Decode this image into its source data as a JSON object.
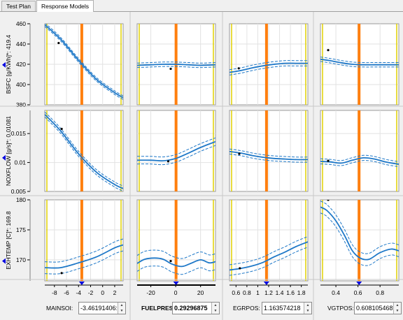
{
  "tabs": [
    {
      "label": "Test Plan",
      "active": false
    },
    {
      "label": "Response Models",
      "active": true
    }
  ],
  "colors": {
    "curve": "#1e78c8",
    "cursor": "#ff7f0e",
    "axis_marker": "#0000e0",
    "point": "#000000"
  },
  "icons": {
    "row_marker": "left-triangle-icon",
    "col_marker": "down-triangle-icon",
    "spinner": "up-down-arrows-icon"
  },
  "responses": [
    {
      "name": "BSFC",
      "label": "BSFC [g/KWh]*: 419.4",
      "ylim": [
        380,
        460
      ],
      "yticks": [
        "380",
        "400",
        "420",
        "440",
        "460"
      ],
      "marker_value": 419.4
    },
    {
      "name": "NOXFLOW",
      "label": "NOXFLOW [g/s]*: 0.01081",
      "ylim": [
        0.005,
        0.019
      ],
      "yticks": [
        "0.005",
        "0.01",
        "0.015"
      ],
      "marker_value": 0.01081
    },
    {
      "name": "EXHTEMP",
      "label": "EXHTEMP [C]*: 169.8",
      "ylim": [
        166.5,
        180
      ],
      "yticks": [
        "170",
        "175",
        "180"
      ],
      "marker_value": 169.8
    }
  ],
  "factors": [
    {
      "name": "MAINSOI",
      "label": "MAINSOI:",
      "value": "-3.46191406:",
      "bold": false,
      "xlim": [
        -9.6,
        3.4
      ],
      "xticks": [
        "-8",
        "-6",
        "-4",
        "-2",
        "0",
        "2"
      ],
      "cursor": -3.46
    },
    {
      "name": "FUELPRESS",
      "label": "FUELPRES...",
      "value": "0.29296875",
      "bold": true,
      "xlim": [
        -31,
        32
      ],
      "xticks": [
        "-20",
        "0",
        "20"
      ],
      "cursor": 0.29
    },
    {
      "name": "EGRPOS",
      "label": "EGRPOS:",
      "value": "1.163574218",
      "bold": false,
      "xlim": [
        0.48,
        1.92
      ],
      "xticks": [
        "0.6",
        "0.8",
        "1",
        "1.2",
        "1.4",
        "1.6",
        "1.8"
      ],
      "cursor": 1.16
    },
    {
      "name": "VGTPOS",
      "label": "VGTPOS:",
      "value": "0.608105468",
      "bold": false,
      "xlim": [
        0.26,
        0.97
      ],
      "xticks": [
        "0.4",
        "0.6",
        "0.8"
      ],
      "cursor": 0.61
    }
  ],
  "chart_data": {
    "type": "line",
    "cells": [
      [
        {
          "x": [
            -9.6,
            -7,
            -4,
            -1,
            2,
            3.4
          ],
          "y": [
            459,
            445,
            424,
            405,
            392,
            387
          ],
          "points": [
            [
              -7.3,
              441
            ]
          ],
          "band": 0.8
        },
        {
          "x": [
            -31,
            -20,
            -10,
            0,
            10,
            20,
            32
          ],
          "y": [
            419,
            419.5,
            420,
            420,
            419.5,
            419,
            419.5
          ],
          "points": [
            [
              -4,
              415.5
            ]
          ],
          "band": 1.0
        },
        {
          "x": [
            0.48,
            0.7,
            0.9,
            1.1,
            1.3,
            1.5,
            1.7,
            1.92
          ],
          "y": [
            412,
            414,
            416.5,
            418.5,
            420,
            421,
            421,
            421
          ],
          "points": [
            [
              0.65,
              416
            ]
          ],
          "band": 1.2
        },
        {
          "x": [
            0.26,
            0.35,
            0.45,
            0.55,
            0.65,
            0.75,
            0.85,
            0.97
          ],
          "y": [
            425,
            423.5,
            421.5,
            420,
            419.5,
            419.5,
            419.5,
            419.5
          ],
          "points": [
            [
              0.33,
              434
            ]
          ],
          "band": 1.0
        }
      ],
      [
        {
          "x": [
            -9.6,
            -7,
            -4,
            -1,
            2,
            3.4
          ],
          "y": [
            0.0183,
            0.0155,
            0.0115,
            0.0083,
            0.0062,
            0.0055
          ],
          "points": [
            [
              -6.8,
              0.0158
            ]
          ],
          "band": 0.0002
        },
        {
          "x": [
            -31,
            -20,
            -10,
            0,
            10,
            20,
            32
          ],
          "y": [
            0.0104,
            0.0104,
            0.0103,
            0.0107,
            0.0116,
            0.0126,
            0.0136
          ],
          "points": [
            [
              -6,
              0.0102
            ]
          ],
          "band": 0.0003
        },
        {
          "x": [
            0.48,
            0.7,
            0.9,
            1.1,
            1.3,
            1.5,
            1.7,
            1.92
          ],
          "y": [
            0.0119,
            0.0116,
            0.0112,
            0.0109,
            0.0107,
            0.0106,
            0.0105,
            0.0105
          ],
          "points": [
            [
              0.66,
              0.0115
            ]
          ],
          "band": 0.0002
        },
        {
          "x": [
            0.26,
            0.35,
            0.45,
            0.55,
            0.65,
            0.75,
            0.85,
            0.97
          ],
          "y": [
            0.0102,
            0.0101,
            0.0099,
            0.0104,
            0.0108,
            0.0106,
            0.0101,
            0.0097
          ],
          "points": [
            [
              0.33,
              0.0103
            ]
          ],
          "band": 0.0002
        }
      ],
      [
        {
          "x": [
            -9.6,
            -7,
            -4,
            -1,
            2,
            3.4
          ],
          "y": [
            168.7,
            168.7,
            169.5,
            170.5,
            172,
            172.5
          ],
          "points": [
            [
              -6.8,
              167.8
            ]
          ],
          "band": 0.45
        },
        {
          "x": [
            -31,
            -25,
            -17,
            -10,
            -3,
            5,
            12,
            20,
            27,
            32
          ],
          "y": [
            169.4,
            170.1,
            170.3,
            170.1,
            169.3,
            168.9,
            169.4,
            170.0,
            169.5,
            169.7
          ],
          "points": [
            [
              -4,
              169.8
            ]
          ],
          "band": 0.6
        },
        {
          "x": [
            0.48,
            0.7,
            0.9,
            1.1,
            1.3,
            1.5,
            1.7,
            1.92
          ],
          "y": [
            168.3,
            168.6,
            169.0,
            169.6,
            170.5,
            171.3,
            172.2,
            173.0
          ],
          "points": [
            [
              0.67,
              168.6
            ]
          ],
          "band": 0.4
        },
        {
          "x": [
            0.26,
            0.32,
            0.4,
            0.48,
            0.55,
            0.62,
            0.7,
            0.8,
            0.9,
            0.97
          ],
          "y": [
            178.8,
            178.2,
            176.5,
            174,
            171.5,
            170.3,
            170.1,
            171.2,
            171.8,
            171.5
          ],
          "points": [
            [
              0.33,
              180
            ]
          ],
          "band": 0.45
        }
      ]
    ]
  }
}
